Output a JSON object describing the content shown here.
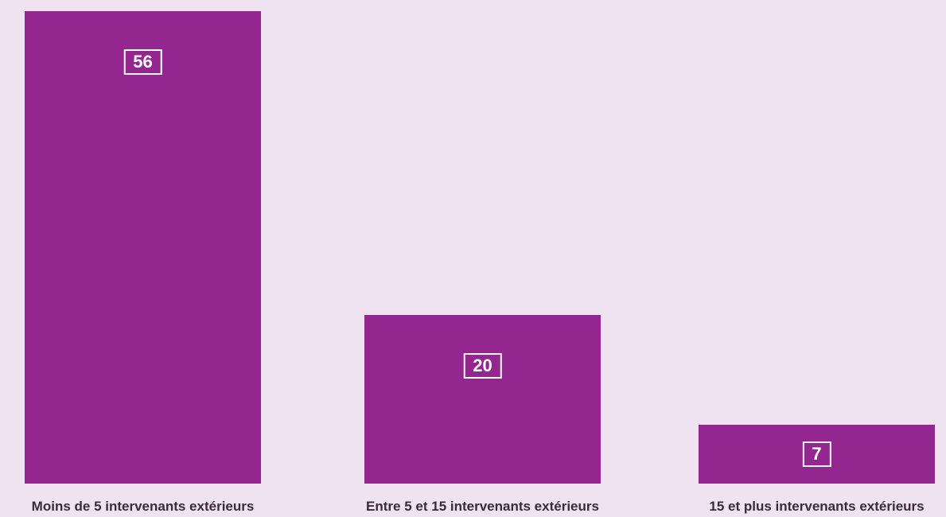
{
  "colors": {
    "background": "#f0e3f1",
    "bar": "#93278f",
    "label_text": "#3a2a3a",
    "value_text": "#ffffff"
  },
  "chart_data": {
    "type": "bar",
    "title": "",
    "xlabel": "",
    "ylabel": "",
    "categories": [
      "Moins de 5 intervenants extérieurs",
      "Entre 5 et 15 intervenants extérieurs",
      "15 et plus intervenants extérieurs"
    ],
    "values": [
      56,
      20,
      7
    ],
    "ylim": [
      0,
      56
    ],
    "grid": false,
    "legend": "none",
    "data_labels": [
      "56",
      "20",
      "7"
    ]
  }
}
